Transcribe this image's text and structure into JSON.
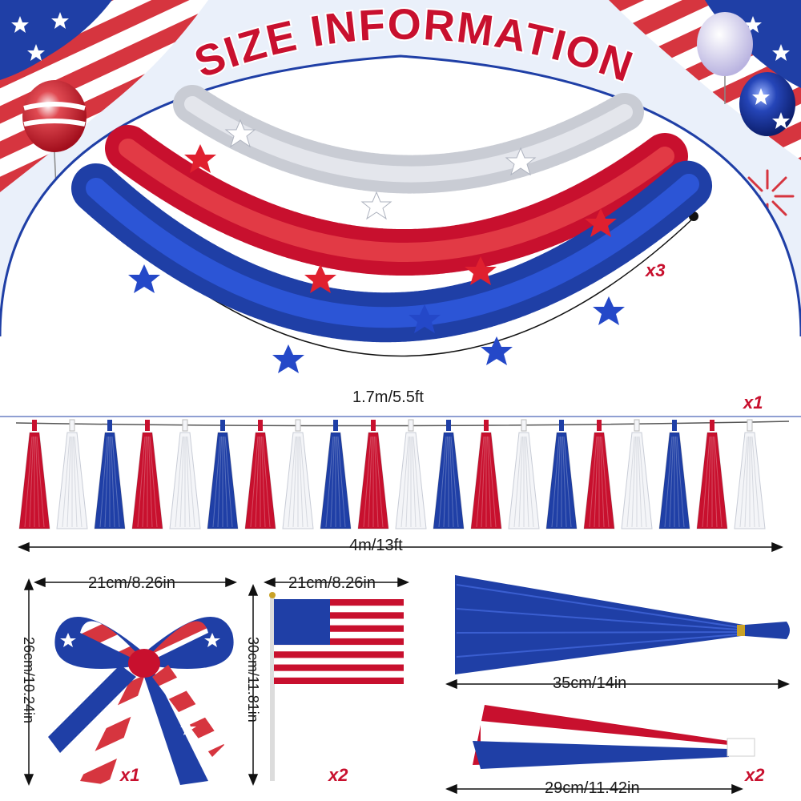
{
  "title": "SIZE INFORMATION",
  "colors": {
    "red": "#c8102e",
    "blue": "#1f3fa6",
    "white": "#ffffff",
    "silver": "#c9ccd4",
    "sky": "#e8f0fb",
    "arch": "#1f3fa6"
  },
  "garland": {
    "length": "1.7m/5.5ft",
    "qty": "x3"
  },
  "tassel_banner": {
    "length": "4m/13ft",
    "qty": "x1",
    "sequence": [
      "red",
      "white",
      "blue",
      "red",
      "white",
      "blue",
      "red",
      "white",
      "blue",
      "red",
      "white",
      "blue",
      "red",
      "white",
      "blue",
      "red",
      "white",
      "blue",
      "red",
      "white"
    ]
  },
  "bow": {
    "width": "21cm/8.26in",
    "height": "26cm/10.24in",
    "qty": "x1"
  },
  "flag": {
    "width": "21cm/8.26in",
    "height": "30cm/11.81in",
    "qty": "x2"
  },
  "big_tassel": {
    "length": "35cm/14in"
  },
  "small_tassel": {
    "length": "29cm/11.42in",
    "qty": "x2"
  },
  "icons": [
    "balloon-icon",
    "fireworks-icon",
    "star-icon",
    "us-flag-icon",
    "bow-icon",
    "tassel-icon"
  ]
}
